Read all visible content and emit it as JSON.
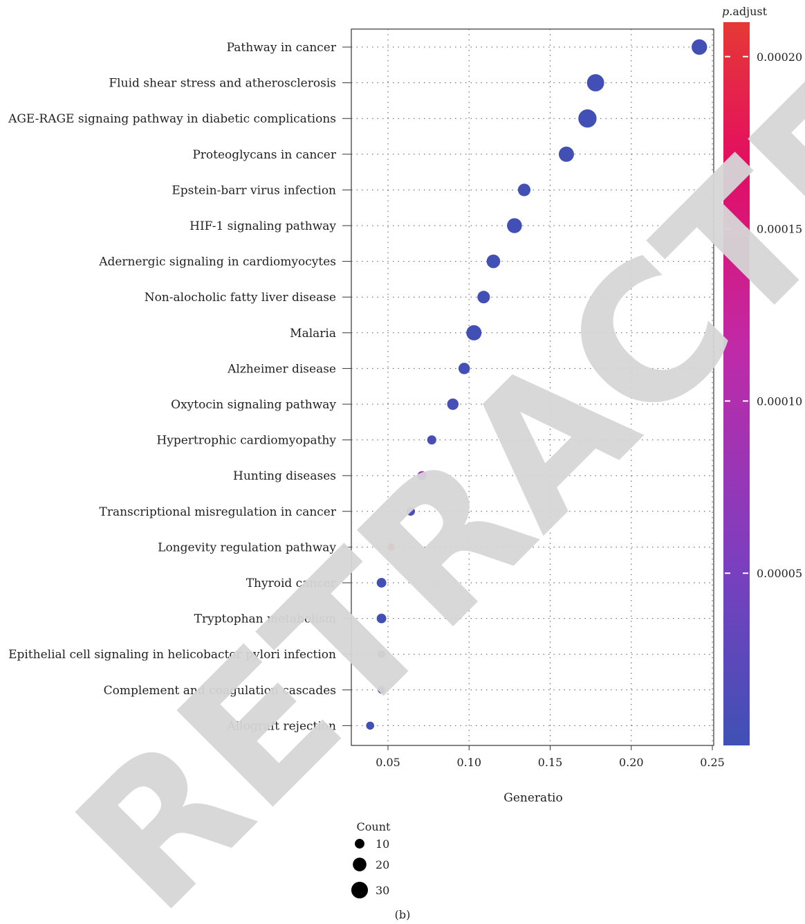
{
  "chart_data": {
    "type": "scatter",
    "xlabel": "Generatio",
    "ylabel": "",
    "xlim": [
      0.03,
      0.253
    ],
    "x_ticks": [
      "0.05",
      "0.10",
      "0.15",
      "0.20",
      "0.25"
    ],
    "x_tick_values": [
      0.05,
      0.1,
      0.15,
      0.2,
      0.25
    ],
    "grid": true,
    "points": [
      {
        "term": "Pathway in cancer",
        "gene_ratio": 0.242,
        "count": 26,
        "p_adjust": 3e-06
      },
      {
        "term": "Fluid shear stress and atherosclerosis",
        "gene_ratio": 0.178,
        "count": 32,
        "p_adjust": 3e-06
      },
      {
        "term": "AGE-RAGE signaing pathway in diabetic complications",
        "gene_ratio": 0.173,
        "count": 36,
        "p_adjust": 3e-06
      },
      {
        "term": "Proteoglycans in cancer",
        "gene_ratio": 0.16,
        "count": 25,
        "p_adjust": 3e-06
      },
      {
        "term": "Epstein-barr virus infection",
        "gene_ratio": 0.134,
        "count": 17,
        "p_adjust": 3e-06
      },
      {
        "term": "HIF-1 signaling pathway",
        "gene_ratio": 0.128,
        "count": 24,
        "p_adjust": 3e-06
      },
      {
        "term": "Adernergic signaling in cardiomyocytes",
        "gene_ratio": 0.115,
        "count": 20,
        "p_adjust": 3e-06
      },
      {
        "term": "Non-alocholic fatty liver disease",
        "gene_ratio": 0.109,
        "count": 17,
        "p_adjust": 3e-06
      },
      {
        "term": "Malaria",
        "gene_ratio": 0.103,
        "count": 25,
        "p_adjust": 3e-06
      },
      {
        "term": "Alzheimer disease",
        "gene_ratio": 0.097,
        "count": 14,
        "p_adjust": 3e-06
      },
      {
        "term": "Oxytocin signaling pathway",
        "gene_ratio": 0.09,
        "count": 14,
        "p_adjust": 6e-06
      },
      {
        "term": "Hypertrophic cardiomyopathy",
        "gene_ratio": 0.077,
        "count": 9,
        "p_adjust": 8e-06
      },
      {
        "term": "Hunting diseases",
        "gene_ratio": 0.071,
        "count": 9,
        "p_adjust": 8e-05
      },
      {
        "term": "Transcriptional misregulation in cancer",
        "gene_ratio": 0.064,
        "count": 8,
        "p_adjust": 1.2e-05
      },
      {
        "term": "Longevity regulation pathway",
        "gene_ratio": 0.052,
        "count": 6,
        "p_adjust": 0.00021
      },
      {
        "term": "Thyroid cancer",
        "gene_ratio": 0.046,
        "count": 10,
        "p_adjust": 3e-06
      },
      {
        "term": "Tryptophan metabolism",
        "gene_ratio": 0.046,
        "count": 10,
        "p_adjust": 3e-06
      },
      {
        "term": "Epithelial cell signaling in helicobactor pylori infection",
        "gene_ratio": 0.046,
        "count": 6,
        "p_adjust": 5.5e-05
      },
      {
        "term": "Complement and coagulation cascades",
        "gene_ratio": 0.046,
        "count": 6,
        "p_adjust": 2e-05
      },
      {
        "term": "Allograft rejection",
        "gene_ratio": 0.039,
        "count": 7,
        "p_adjust": 3e-06
      }
    ],
    "color_scale": {
      "title_italic": "p",
      "title_rest": ".adjust",
      "min": 0.0,
      "max": 0.00021,
      "ticks": [
        "0.00005",
        "0.00010",
        "0.00015",
        "0.00020"
      ],
      "tick_values": [
        5e-05,
        0.0001,
        0.00015,
        0.0002
      ],
      "low_color": "#3f51b5",
      "mid_color": "#e0115f",
      "high_color": "#e53935"
    },
    "size_legend": {
      "title": "Count",
      "entries": [
        {
          "label": "10",
          "count": 10
        },
        {
          "label": "20",
          "count": 20
        },
        {
          "label": "30",
          "count": 30
        }
      ]
    }
  },
  "panel_label": "(b)",
  "watermark": "RETRACTED"
}
